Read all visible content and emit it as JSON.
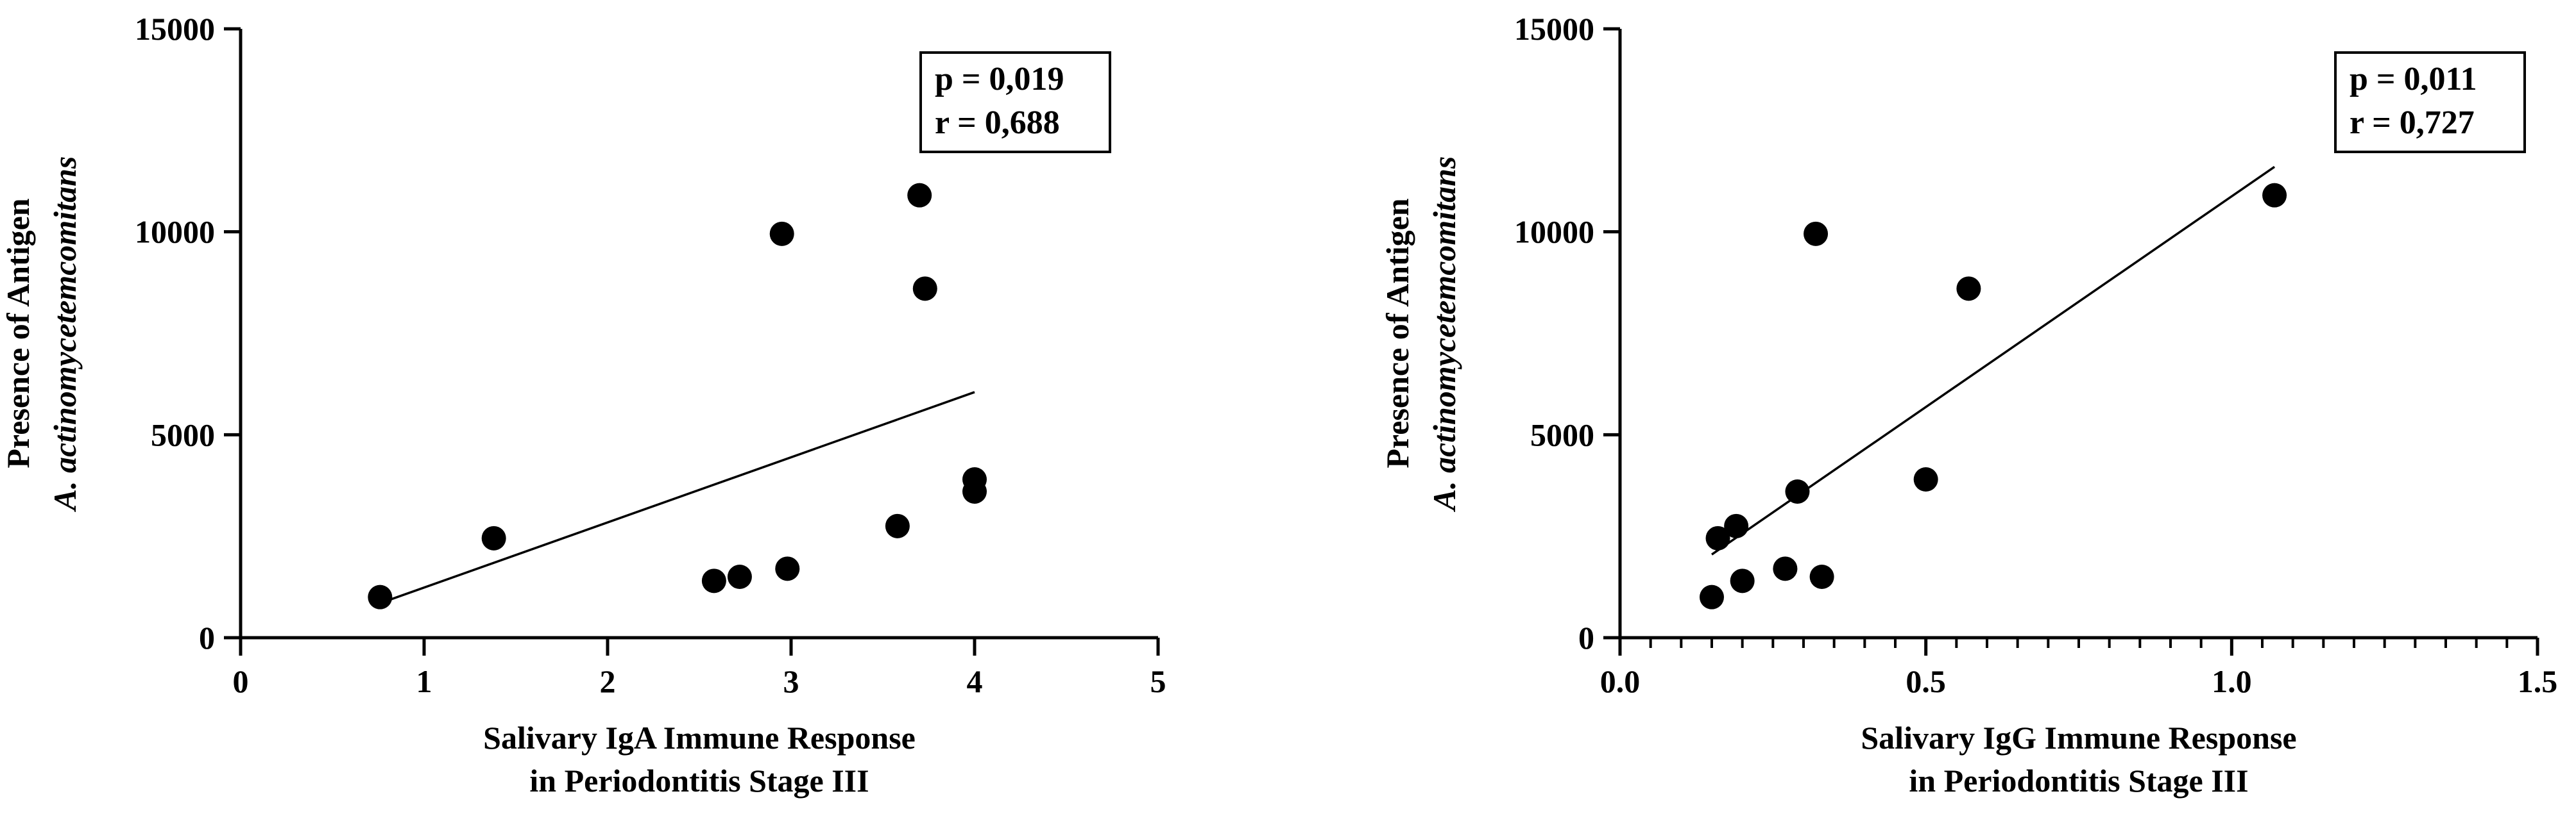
{
  "chart_data": [
    {
      "type": "scatter",
      "title": "",
      "xlabel": [
        "Salivary IgA Immune Response",
        "in Periodontitis Stage III"
      ],
      "ylabel": [
        "Presence of Antigen",
        "A. actinomycetemcomitans"
      ],
      "xlim": [
        0,
        5
      ],
      "ylim": [
        0,
        15000
      ],
      "x_ticks": [
        0,
        1,
        2,
        3,
        4,
        5
      ],
      "x_tick_labels": [
        "0",
        "1",
        "2",
        "3",
        "4",
        "5"
      ],
      "y_ticks": [
        0,
        5000,
        10000,
        15000
      ],
      "y_tick_labels": [
        "0",
        "5000",
        "10000",
        "15000"
      ],
      "x_minor_step": 0,
      "grid": false,
      "stats": [
        "p = 0,019",
        "r = 0,688"
      ],
      "points": [
        {
          "x": 0.76,
          "y": 1000
        },
        {
          "x": 1.38,
          "y": 2450
        },
        {
          "x": 2.58,
          "y": 1400
        },
        {
          "x": 2.72,
          "y": 1500
        },
        {
          "x": 2.98,
          "y": 1700
        },
        {
          "x": 2.95,
          "y": 9950
        },
        {
          "x": 3.58,
          "y": 2750
        },
        {
          "x": 3.7,
          "y": 10900
        },
        {
          "x": 3.73,
          "y": 8600
        },
        {
          "x": 4.0,
          "y": 3900
        },
        {
          "x": 4.0,
          "y": 3600
        }
      ],
      "fit_line": {
        "x": [
          0.76,
          4.0
        ],
        "y": [
          850,
          6050
        ]
      }
    },
    {
      "type": "scatter",
      "title": "",
      "xlabel": [
        "Salivary IgG Immune Response",
        "in Periodontitis Stage III"
      ],
      "ylabel": [
        "Presence of Antigen",
        "A. actinomycetemcomitans"
      ],
      "xlim": [
        0,
        1.5
      ],
      "ylim": [
        0,
        15000
      ],
      "x_ticks": [
        0,
        0.5,
        1.0,
        1.5
      ],
      "x_tick_labels": [
        "0.0",
        "0.5",
        "1.0",
        "1.5"
      ],
      "y_ticks": [
        0,
        5000,
        10000,
        15000
      ],
      "y_tick_labels": [
        "0",
        "5000",
        "10000",
        "15000"
      ],
      "x_minor_step": 0.05,
      "grid": false,
      "stats": [
        "p = 0,011",
        "r = 0,727"
      ],
      "points": [
        {
          "x": 0.15,
          "y": 1000
        },
        {
          "x": 0.16,
          "y": 2450
        },
        {
          "x": 0.19,
          "y": 2750
        },
        {
          "x": 0.2,
          "y": 1400
        },
        {
          "x": 0.27,
          "y": 1700
        },
        {
          "x": 0.29,
          "y": 3600
        },
        {
          "x": 0.32,
          "y": 9950
        },
        {
          "x": 0.33,
          "y": 1500
        },
        {
          "x": 0.5,
          "y": 3900
        },
        {
          "x": 0.57,
          "y": 8600
        },
        {
          "x": 1.07,
          "y": 10900
        }
      ],
      "fit_line": {
        "x": [
          0.15,
          1.07
        ],
        "y": [
          2050,
          11600
        ]
      }
    }
  ]
}
